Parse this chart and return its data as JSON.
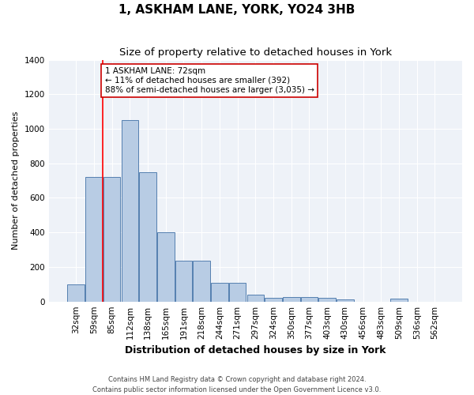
{
  "title": "1, ASKHAM LANE, YORK, YO24 3HB",
  "subtitle": "Size of property relative to detached houses in York",
  "xlabel": "Distribution of detached houses by size in York",
  "ylabel": "Number of detached properties",
  "categories": [
    "32sqm",
    "59sqm",
    "85sqm",
    "112sqm",
    "138sqm",
    "165sqm",
    "191sqm",
    "218sqm",
    "244sqm",
    "271sqm",
    "297sqm",
    "324sqm",
    "350sqm",
    "377sqm",
    "403sqm",
    "430sqm",
    "456sqm",
    "483sqm",
    "509sqm",
    "536sqm",
    "562sqm"
  ],
  "values": [
    100,
    720,
    720,
    1050,
    750,
    400,
    235,
    235,
    110,
    110,
    40,
    22,
    28,
    28,
    20,
    10,
    0,
    0,
    15,
    0,
    0
  ],
  "bar_color": "#b8cce4",
  "bar_edge_color": "#5580b0",
  "annotation_text": "1 ASKHAM LANE: 72sqm\n← 11% of detached houses are smaller (392)\n88% of semi-detached houses are larger (3,035) →",
  "annotation_box_facecolor": "#ffffff",
  "annotation_box_edgecolor": "#cc0000",
  "ylim": [
    0,
    1400
  ],
  "yticks": [
    0,
    200,
    400,
    600,
    800,
    1000,
    1200,
    1400
  ],
  "bg_color": "#eef2f8",
  "footer_text": "Contains HM Land Registry data © Crown copyright and database right 2024.\nContains public sector information licensed under the Open Government Licence v3.0.",
  "title_fontsize": 11,
  "subtitle_fontsize": 9.5,
  "tick_fontsize": 7.5,
  "ylabel_fontsize": 8,
  "xlabel_fontsize": 9,
  "annotation_fontsize": 7.5,
  "footer_fontsize": 6
}
